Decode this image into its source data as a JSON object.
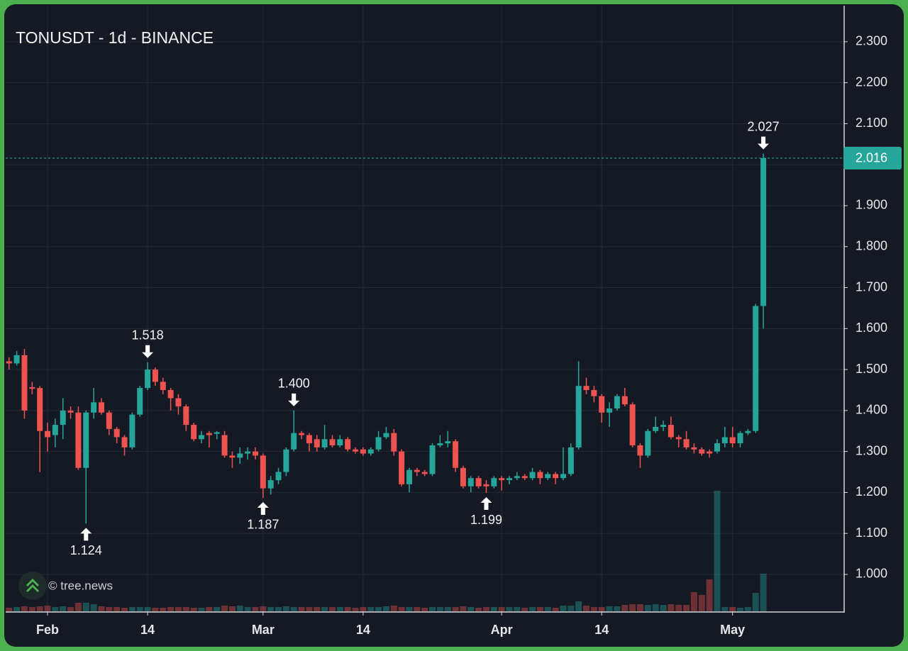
{
  "chart_data": {
    "type": "candlestick",
    "title": "TONUSDT - 1d - BINANCE",
    "watermark": "© tree.news",
    "x": [
      -5,
      -4,
      -3,
      -2,
      -1,
      0,
      1,
      2,
      3,
      4,
      5,
      6,
      7,
      8,
      9,
      10,
      11,
      12,
      13,
      14,
      15,
      16,
      17,
      18,
      19,
      20,
      21,
      22,
      23,
      24,
      25,
      26,
      27,
      28,
      29,
      30,
      31,
      32,
      33,
      34,
      35,
      36,
      37,
      38,
      39,
      40,
      41,
      42,
      43,
      44,
      45,
      46,
      47,
      48,
      49,
      50,
      51,
      52,
      53,
      54,
      55,
      56,
      57,
      58,
      59,
      60,
      61,
      62,
      63,
      64,
      65,
      66,
      67,
      68,
      69,
      70,
      71,
      72,
      73,
      74,
      75,
      76,
      77,
      78,
      79,
      80,
      81,
      82,
      83,
      84,
      85,
      86,
      87,
      88,
      89,
      90,
      91,
      92,
      93
    ],
    "open": [
      1.52,
      1.515,
      1.535,
      1.457,
      1.455,
      1.35,
      1.34,
      1.365,
      1.4,
      1.395,
      1.26,
      1.395,
      1.42,
      1.395,
      1.355,
      1.335,
      1.31,
      1.39,
      1.455,
      1.5,
      1.47,
      1.45,
      1.43,
      1.41,
      1.365,
      1.33,
      1.345,
      1.343,
      1.34,
      1.29,
      1.285,
      1.295,
      1.3,
      1.29,
      1.21,
      1.23,
      1.25,
      1.305,
      1.345,
      1.34,
      1.33,
      1.31,
      1.33,
      1.315,
      1.33,
      1.305,
      1.305,
      1.295,
      1.305,
      1.335,
      1.345,
      1.3,
      1.22,
      1.255,
      1.25,
      1.245,
      1.315,
      1.32,
      1.325,
      1.26,
      1.215,
      1.235,
      1.22,
      1.215,
      1.235,
      1.23,
      1.235,
      1.24,
      1.235,
      1.25,
      1.235,
      1.245,
      1.235,
      1.245,
      1.31,
      1.46,
      1.45,
      1.435,
      1.395,
      1.405,
      1.435,
      1.415,
      1.315,
      1.29,
      1.35,
      1.36,
      1.365,
      1.335,
      1.33,
      1.31,
      1.305,
      1.3,
      1.3,
      1.32,
      1.335,
      1.32,
      1.345,
      1.35,
      1.655
    ],
    "high": [
      1.53,
      1.545,
      1.55,
      1.47,
      1.46,
      1.37,
      1.38,
      1.43,
      1.41,
      1.41,
      1.4,
      1.455,
      1.43,
      1.4,
      1.36,
      1.34,
      1.395,
      1.46,
      1.518,
      1.505,
      1.48,
      1.455,
      1.44,
      1.415,
      1.37,
      1.35,
      1.35,
      1.35,
      1.35,
      1.3,
      1.31,
      1.31,
      1.31,
      1.295,
      1.24,
      1.26,
      1.31,
      1.4,
      1.35,
      1.345,
      1.34,
      1.365,
      1.34,
      1.34,
      1.335,
      1.31,
      1.31,
      1.31,
      1.35,
      1.36,
      1.355,
      1.305,
      1.26,
      1.26,
      1.255,
      1.32,
      1.34,
      1.35,
      1.33,
      1.265,
      1.24,
      1.24,
      1.23,
      1.24,
      1.24,
      1.24,
      1.25,
      1.245,
      1.26,
      1.255,
      1.25,
      1.25,
      1.31,
      1.32,
      1.52,
      1.48,
      1.46,
      1.44,
      1.42,
      1.44,
      1.455,
      1.42,
      1.32,
      1.355,
      1.385,
      1.375,
      1.385,
      1.34,
      1.35,
      1.32,
      1.31,
      1.305,
      1.33,
      1.36,
      1.36,
      1.35,
      1.355,
      1.66,
      2.027
    ],
    "low": [
      1.5,
      1.51,
      1.38,
      1.44,
      1.25,
      1.3,
      1.31,
      1.33,
      1.38,
      1.255,
      1.124,
      1.38,
      1.39,
      1.34,
      1.32,
      1.29,
      1.305,
      1.385,
      1.45,
      1.46,
      1.44,
      1.4,
      1.39,
      1.35,
      1.325,
      1.32,
      1.31,
      1.33,
      1.285,
      1.26,
      1.27,
      1.28,
      1.28,
      1.187,
      1.195,
      1.22,
      1.24,
      1.3,
      1.33,
      1.3,
      1.3,
      1.305,
      1.31,
      1.31,
      1.3,
      1.295,
      1.29,
      1.29,
      1.3,
      1.33,
      1.29,
      1.215,
      1.2,
      1.24,
      1.24,
      1.24,
      1.31,
      1.31,
      1.25,
      1.21,
      1.2,
      1.21,
      1.199,
      1.21,
      1.205,
      1.22,
      1.23,
      1.23,
      1.23,
      1.22,
      1.23,
      1.22,
      1.23,
      1.24,
      1.305,
      1.44,
      1.42,
      1.37,
      1.36,
      1.4,
      1.41,
      1.31,
      1.26,
      1.285,
      1.345,
      1.35,
      1.33,
      1.31,
      1.305,
      1.295,
      1.29,
      1.285,
      1.295,
      1.31,
      1.31,
      1.31,
      1.34,
      1.345,
      1.6
    ],
    "close": [
      1.515,
      1.535,
      1.4,
      1.453,
      1.35,
      1.335,
      1.365,
      1.4,
      1.395,
      1.26,
      1.395,
      1.42,
      1.395,
      1.355,
      1.335,
      1.31,
      1.39,
      1.455,
      1.5,
      1.47,
      1.45,
      1.43,
      1.41,
      1.365,
      1.33,
      1.34,
      1.34,
      1.347,
      1.29,
      1.285,
      1.295,
      1.3,
      1.29,
      1.21,
      1.23,
      1.25,
      1.305,
      1.345,
      1.34,
      1.32,
      1.31,
      1.33,
      1.315,
      1.33,
      1.305,
      1.3,
      1.295,
      1.305,
      1.335,
      1.345,
      1.3,
      1.22,
      1.255,
      1.25,
      1.245,
      1.315,
      1.32,
      1.325,
      1.26,
      1.215,
      1.235,
      1.215,
      1.215,
      1.235,
      1.23,
      1.235,
      1.24,
      1.235,
      1.25,
      1.235,
      1.245,
      1.235,
      1.245,
      1.31,
      1.46,
      1.45,
      1.435,
      1.395,
      1.405,
      1.435,
      1.415,
      1.315,
      1.29,
      1.35,
      1.36,
      1.365,
      1.335,
      1.33,
      1.31,
      1.305,
      1.295,
      1.295,
      1.32,
      1.335,
      1.32,
      1.345,
      1.35,
      1.655,
      2.016
    ],
    "volume": [
      5,
      6,
      7,
      6,
      7,
      8,
      6,
      7,
      6,
      12,
      12,
      10,
      7,
      6,
      6,
      5,
      6,
      6,
      6,
      5,
      5,
      6,
      6,
      6,
      5,
      5,
      6,
      6,
      8,
      7,
      8,
      6,
      6,
      7,
      6,
      6,
      7,
      6,
      6,
      6,
      6,
      6,
      6,
      6,
      6,
      5,
      6,
      6,
      6,
      7,
      8,
      6,
      6,
      6,
      5,
      6,
      6,
      6,
      6,
      7,
      6,
      5,
      6,
      6,
      6,
      6,
      6,
      5,
      6,
      6,
      6,
      5,
      8,
      8,
      14,
      8,
      6,
      6,
      7,
      7,
      9,
      10,
      10,
      9,
      10,
      9,
      10,
      9,
      9,
      27,
      23,
      45,
      170,
      6,
      6,
      5,
      6,
      26,
      53
    ],
    "up_color": "#26a69a",
    "down_color": "#ef5350",
    "xlim": [
      -5.44,
      103.5
    ],
    "ylim": [
      0.91,
      2.388
    ],
    "xticks": [
      {
        "value": 0,
        "label": "Feb"
      },
      {
        "value": 13,
        "label": "14"
      },
      {
        "value": 28,
        "label": "Mar"
      },
      {
        "value": 41,
        "label": "14"
      },
      {
        "value": 59,
        "label": "Apr"
      },
      {
        "value": 72,
        "label": "14"
      },
      {
        "value": 89,
        "label": "May"
      }
    ],
    "yticks": [
      {
        "value": 1.0,
        "label": "1.000"
      },
      {
        "value": 1.1,
        "label": "1.100"
      },
      {
        "value": 1.2,
        "label": "1.200"
      },
      {
        "value": 1.3,
        "label": "1.300"
      },
      {
        "value": 1.4,
        "label": "1.400"
      },
      {
        "value": 1.5,
        "label": "1.500"
      },
      {
        "value": 1.6,
        "label": "1.600"
      },
      {
        "value": 1.7,
        "label": "1.700"
      },
      {
        "value": 1.8,
        "label": "1.800"
      },
      {
        "value": 1.9,
        "label": "1.900"
      },
      {
        "value": 2.0,
        "label": "2.000"
      },
      {
        "value": 2.1,
        "label": "2.100"
      },
      {
        "value": 2.2,
        "label": "2.200"
      },
      {
        "value": 2.3,
        "label": "2.300"
      }
    ],
    "grid": true,
    "last_price": {
      "value": 2.016,
      "label": "2.016"
    },
    "annotations": [
      {
        "x": 5,
        "value": 1.124,
        "label": "1.124",
        "side": "below"
      },
      {
        "x": 13,
        "value": 1.518,
        "label": "1.518",
        "side": "above"
      },
      {
        "x": 28,
        "value": 1.187,
        "label": "1.187",
        "side": "below"
      },
      {
        "x": 32,
        "value": 1.4,
        "label": "1.400",
        "side": "above"
      },
      {
        "x": 57,
        "value": 1.199,
        "label": "1.199",
        "side": "below"
      },
      {
        "x": 93,
        "value": 2.027,
        "label": "2.027",
        "side": "above"
      }
    ]
  }
}
